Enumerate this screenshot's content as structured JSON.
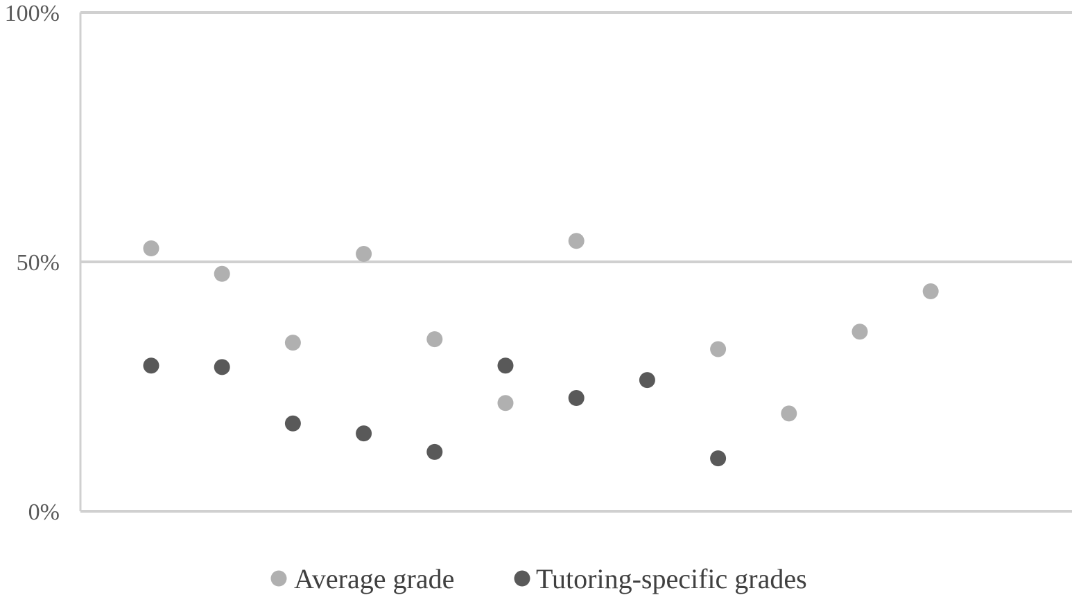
{
  "chart_data": {
    "type": "scatter",
    "title": "",
    "xlabel": "",
    "ylabel": "",
    "ylim": [
      0,
      100
    ],
    "y_ticks": [
      "0%",
      "50%",
      "100%"
    ],
    "y_tick_values": [
      0,
      50,
      100
    ],
    "grid": "horizontal",
    "x_axis_labels": "none",
    "legend_position": "bottom",
    "x": [
      1,
      2,
      3,
      4,
      5,
      6,
      7,
      8,
      9,
      10,
      11,
      12
    ],
    "series": [
      {
        "name": "Average grade",
        "color": "#b0b0b0",
        "values": [
          52.7,
          47.6,
          33.8,
          51.6,
          34.5,
          21.7,
          54.2,
          null,
          32.5,
          19.6,
          36.0,
          44.1
        ]
      },
      {
        "name": "Tutoring-specific grades",
        "color": "#595959",
        "values": [
          29.2,
          28.9,
          17.6,
          15.6,
          11.9,
          29.2,
          22.7,
          26.3,
          10.6,
          null,
          null,
          null
        ]
      }
    ]
  }
}
